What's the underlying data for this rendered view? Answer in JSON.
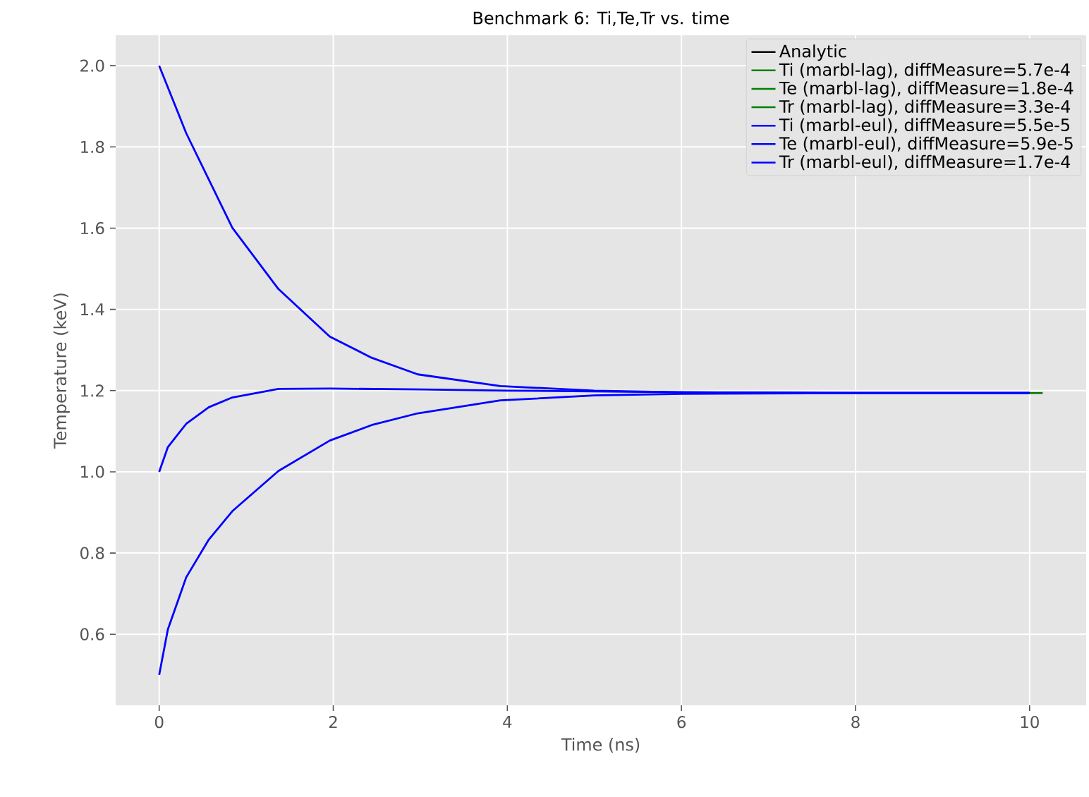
{
  "chart_data": {
    "type": "line",
    "title": "Benchmark 6: Ti,Te,Tr vs. time",
    "xlabel": "Time (ns)",
    "ylabel": "Temperature (keV)",
    "xlim": [
      -0.5,
      10.65
    ],
    "ylim": [
      0.425,
      2.075
    ],
    "xticks": [
      0,
      2,
      4,
      6,
      8,
      10
    ],
    "yticks": [
      {
        "value": 0.6,
        "label": "0.6"
      },
      {
        "value": 0.8,
        "label": "0.8"
      },
      {
        "value": 1.0,
        "label": "1.0"
      },
      {
        "value": 1.2,
        "label": "1.2"
      },
      {
        "value": 1.4,
        "label": "1.4"
      },
      {
        "value": 1.6,
        "label": "1.6"
      },
      {
        "value": 1.8,
        "label": "1.8"
      },
      {
        "value": 2.0,
        "label": "2.0"
      }
    ],
    "grid": true,
    "legend": "top right",
    "marker": "none",
    "line_style": "solid",
    "series": [
      {
        "name": "Analytic",
        "color": "#000000"
      },
      {
        "name": "Ti (marbl-lag), diffMeasure=5.7e-4",
        "color": "#008000",
        "x": [
          10,
          10.15
        ],
        "values": [
          1.194,
          1.194
        ]
      },
      {
        "name": "Te (marbl-lag), diffMeasure=1.8e-4",
        "color": "#008000"
      },
      {
        "name": "Tr (marbl-lag), diffMeasure=3.3e-4",
        "color": "#008000"
      },
      {
        "name": "Ti (marbl-eul), diffMeasure=5.5e-5",
        "color": "#0000ff",
        "x": [
          0,
          0.31,
          0.84,
          1.37,
          1.96,
          2.44,
          2.97,
          3.92,
          5,
          6,
          8,
          10
        ],
        "values": [
          2.0,
          1.834,
          1.601,
          1.45,
          1.333,
          1.281,
          1.24,
          1.211,
          1.2,
          1.196,
          1.194,
          1.194
        ]
      },
      {
        "name": "Te (marbl-eul), diffMeasure=5.9e-5",
        "color": "#0000ff",
        "x": [
          0,
          0.1,
          0.31,
          0.57,
          0.84,
          1.37,
          1.96,
          3,
          4,
          6,
          8,
          10
        ],
        "values": [
          1.0,
          1.061,
          1.118,
          1.159,
          1.183,
          1.204,
          1.205,
          1.203,
          1.2,
          1.196,
          1.194,
          1.194
        ]
      },
      {
        "name": "Tr (marbl-eul), diffMeasure=1.7e-4",
        "color": "#0000ff",
        "x": [
          0,
          0.1,
          0.31,
          0.57,
          0.84,
          1.37,
          1.96,
          2.44,
          2.97,
          3.92,
          5,
          6,
          8,
          10
        ],
        "values": [
          0.5,
          0.612,
          0.74,
          0.833,
          0.903,
          1.002,
          1.077,
          1.115,
          1.144,
          1.176,
          1.188,
          1.192,
          1.194,
          1.194
        ]
      }
    ]
  }
}
